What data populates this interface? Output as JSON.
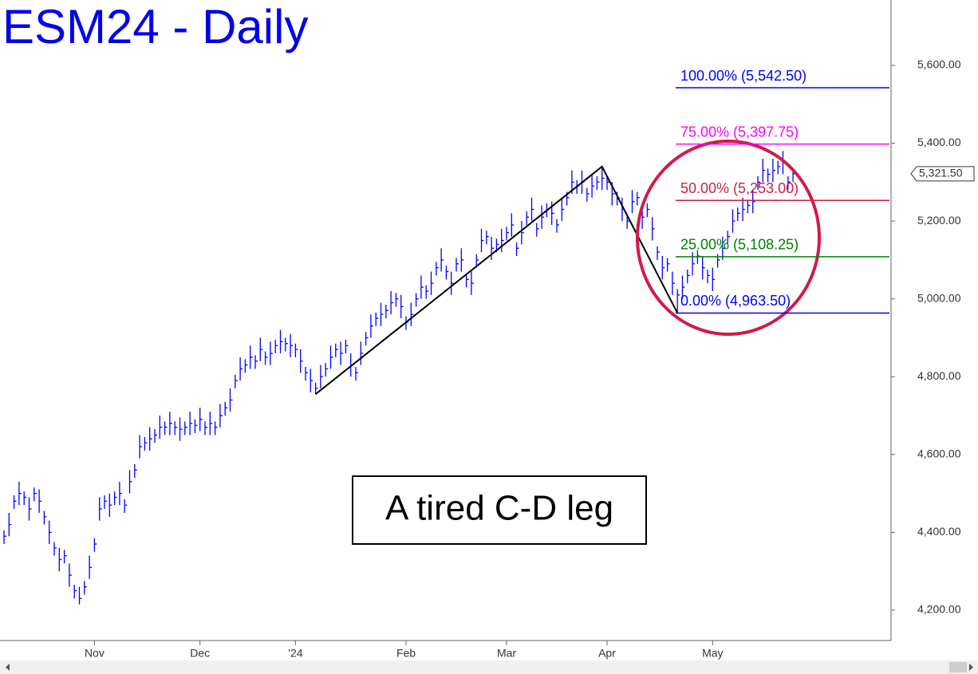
{
  "chart_data": {
    "type": "ohlc",
    "title": "ESM24 - Daily",
    "annotation": "A tired C-D leg",
    "color": "#0000ff",
    "categories": [
      null,
      null,
      null,
      null,
      null,
      null,
      null,
      null,
      null,
      null,
      null,
      null,
      null,
      null,
      null,
      null,
      null,
      null,
      "Nov",
      null,
      null,
      null,
      null,
      null,
      null,
      null,
      null,
      null,
      null,
      null,
      null,
      null,
      null,
      null,
      null,
      null,
      null,
      null,
      null,
      "Dec",
      null,
      null,
      null,
      null,
      null,
      null,
      null,
      null,
      null,
      null,
      null,
      null,
      null,
      null,
      null,
      null,
      null,
      null,
      "'24",
      null,
      null,
      null,
      null,
      null,
      null,
      null,
      null,
      null,
      null,
      null,
      null,
      null,
      null,
      null,
      null,
      null,
      null,
      null,
      null,
      null,
      "Feb",
      null,
      null,
      null,
      null,
      null,
      null,
      null,
      null,
      null,
      null,
      null,
      null,
      null,
      null,
      null,
      null,
      null,
      null,
      null,
      "Mar",
      null,
      null,
      null,
      null,
      null,
      null,
      null,
      null,
      null,
      null,
      null,
      null,
      null,
      null,
      null,
      null,
      null,
      null,
      null,
      "Apr",
      null,
      null,
      null,
      null,
      null,
      null,
      null,
      null,
      null,
      null,
      null,
      null,
      null,
      null,
      null,
      null,
      null,
      null,
      null,
      null,
      "May",
      null,
      null,
      null,
      null,
      null,
      null,
      null,
      null,
      null,
      null,
      null,
      null,
      null,
      null,
      null,
      null
    ],
    "high": [
      4405,
      4450,
      4495,
      4530,
      4505,
      4490,
      4515,
      4510,
      4455,
      4430,
      4375,
      4360,
      4355,
      4320,
      4265,
      4260,
      4275,
      4340,
      4385,
      4490,
      4495,
      4500,
      4505,
      4530,
      4485,
      4560,
      4575,
      4650,
      4645,
      4670,
      4665,
      4700,
      4685,
      4710,
      4685,
      4695,
      4685,
      4710,
      4690,
      4720,
      4685,
      4710,
      4685,
      4730,
      4735,
      4770,
      4805,
      4850,
      4845,
      4880,
      4855,
      4900,
      4865,
      4890,
      4895,
      4920,
      4900,
      4910,
      4885,
      4870,
      4825,
      4820,
      4785,
      4830,
      4835,
      4880,
      4885,
      4890,
      4895,
      4860,
      4825,
      4890,
      4915,
      4960,
      4965,
      4990,
      4985,
      5020,
      5015,
      5010,
      4955,
      4990,
      5015,
      5060,
      5035,
      5070,
      5095,
      5130,
      5085,
      5070,
      5105,
      5130,
      5065,
      5070,
      5115,
      5180,
      5175,
      5160,
      5155,
      5180,
      5185,
      5220,
      5145,
      5200,
      5225,
      5260,
      5195,
      5240,
      5245,
      5250,
      5205,
      5260,
      5275,
      5330,
      5305,
      5330,
      5285,
      5320,
      5315,
      5340,
      5315,
      5300,
      5275,
      5260,
      5215,
      5280,
      5275,
      5240,
      5245,
      5210,
      5135,
      5110,
      5105,
      5070,
      5025,
      5060,
      5075,
      5120,
      5125,
      5110,
      5075,
      5080,
      5115,
      5160,
      5175,
      5230,
      5235,
      5260,
      5255,
      5280,
      5315,
      5360,
      5335,
      5360,
      5355,
      5380,
      5315,
      5335
    ],
    "low": [
      4370,
      4390,
      4460,
      4470,
      4470,
      4430,
      4480,
      4450,
      4420,
      4370,
      4340,
      4300,
      4320,
      4260,
      4230,
      4215,
      4240,
      4280,
      4350,
      4430,
      4460,
      4440,
      4470,
      4470,
      4450,
      4500,
      4540,
      4590,
      4610,
      4610,
      4630,
      4640,
      4650,
      4650,
      4650,
      4635,
      4650,
      4650,
      4655,
      4660,
      4650,
      4650,
      4650,
      4670,
      4700,
      4710,
      4770,
      4790,
      4810,
      4820,
      4820,
      4840,
      4830,
      4830,
      4860,
      4860,
      4865,
      4850,
      4850,
      4810,
      4790,
      4760,
      4755,
      4770,
      4800,
      4820,
      4850,
      4830,
      4860,
      4800,
      4790,
      4830,
      4880,
      4900,
      4930,
      4930,
      4950,
      4960,
      4980,
      4950,
      4920,
      4930,
      4980,
      5000,
      5000,
      5010,
      5060,
      5070,
      5050,
      5010,
      5070,
      5070,
      5030,
      5010,
      5080,
      5120,
      5140,
      5100,
      5120,
      5120,
      5150,
      5160,
      5110,
      5140,
      5190,
      5200,
      5160,
      5180,
      5210,
      5190,
      5170,
      5200,
      5240,
      5270,
      5270,
      5270,
      5250,
      5260,
      5280,
      5280,
      5280,
      5240,
      5240,
      5200,
      5180,
      5220,
      5240,
      5180,
      5210,
      5150,
      5100,
      5050,
      5070,
      5010,
      4963.5,
      5000,
      5040,
      5060,
      5090,
      5050,
      5040,
      5020,
      5080,
      5100,
      5140,
      5170,
      5200,
      5200,
      5220,
      5220,
      5280,
      5300,
      5300,
      5300,
      5320,
      5320,
      5280,
      5300
    ],
    "close": [
      4390,
      4420,
      4480,
      4500,
      4490,
      4460,
      4500,
      4480,
      4440,
      4400,
      4360,
      4330,
      4340,
      4290,
      4250,
      4230,
      4260,
      4310,
      4370,
      4460,
      4480,
      4470,
      4490,
      4500,
      4470,
      4530,
      4560,
      4620,
      4630,
      4640,
      4650,
      4670,
      4670,
      4680,
      4670,
      4665,
      4670,
      4680,
      4675,
      4690,
      4670,
      4680,
      4670,
      4700,
      4720,
      4740,
      4790,
      4820,
      4830,
      4850,
      4840,
      4870,
      4850,
      4860,
      4880,
      4890,
      4885,
      4880,
      4870,
      4840,
      4810,
      4790,
      4770,
      4800,
      4820,
      4850,
      4870,
      4860,
      4880,
      4830,
      4810,
      4860,
      4900,
      4930,
      4950,
      4960,
      4970,
      4990,
      5000,
      4980,
      4940,
      4960,
      5000,
      5030,
      5020,
      5040,
      5080,
      5100,
      5070,
      5040,
      5090,
      5100,
      5050,
      5040,
      5100,
      5150,
      5160,
      5130,
      5140,
      5150,
      5170,
      5190,
      5130,
      5170,
      5210,
      5230,
      5180,
      5210,
      5230,
      5220,
      5190,
      5230,
      5260,
      5300,
      5290,
      5300,
      5270,
      5290,
      5300,
      5310,
      5300,
      5270,
      5260,
      5230,
      5200,
      5250,
      5260,
      5210,
      5230,
      5180,
      5120,
      5080,
      5090,
      5040,
      5010,
      5030,
      5060,
      5090,
      5110,
      5080,
      5060,
      5050,
      5100,
      5130,
      5160,
      5200,
      5220,
      5230,
      5240,
      5250,
      5300,
      5330,
      5320,
      5330,
      5340,
      5350,
      5300,
      5321.5
    ],
    "last": {
      "value": 5321.5,
      "label": "5,321.50"
    },
    "levels": [
      {
        "value": 5542.5,
        "label": "100.00% (5,542.50)",
        "color": "#0000ff"
      },
      {
        "value": 5397.75,
        "label": "75.00% (5,397.75)",
        "color": "#ff00ff"
      },
      {
        "value": 5253,
        "label": "50.00% (5,253.00)",
        "color": "#cc2244"
      },
      {
        "value": 5108.25,
        "label": "25.00% (5,108.25)",
        "color": "#008000"
      },
      {
        "value": 4963.5,
        "label": "0.00% (4,963.50)",
        "color": "#0000ff"
      }
    ],
    "ylim": [
      4122,
      5768
    ],
    "yticks": [
      {
        "value": 4200,
        "label": "4,200.00"
      },
      {
        "value": 4400,
        "label": "4,400.00"
      },
      {
        "value": 4600,
        "label": "4,600.00"
      },
      {
        "value": 4800,
        "label": "4,800.00"
      },
      {
        "value": 5000,
        "label": "5,000.00"
      },
      {
        "value": 5200,
        "label": "5,200.00"
      },
      {
        "value": 5400,
        "label": "5,400.00"
      },
      {
        "value": 5600,
        "label": "5,600.00"
      }
    ]
  }
}
